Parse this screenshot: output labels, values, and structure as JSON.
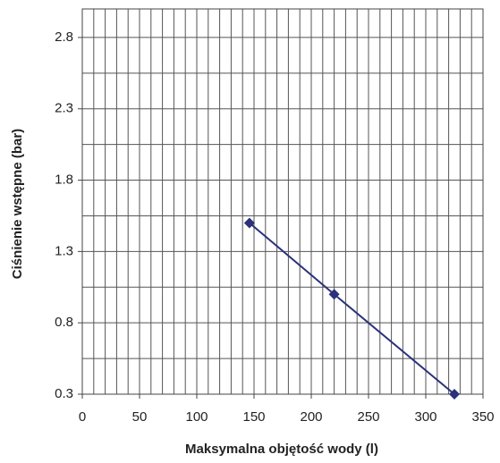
{
  "chart_data": {
    "type": "line",
    "x_label": "Maksymalna objętość wody (l)",
    "y_label": "Ciśnienie wstępne (bar)",
    "x": [
      146,
      220,
      325
    ],
    "series": [
      {
        "color": "#2b327a",
        "values": [
          1.5,
          1.0,
          0.3
        ]
      }
    ],
    "xlim": [
      0,
      350
    ],
    "ylim": [
      0.3,
      3.0
    ],
    "xticks": [
      0,
      50,
      100,
      150,
      200,
      250,
      300,
      350
    ],
    "yticks": [
      0.3,
      0.8,
      1.3,
      1.8,
      2.3,
      2.8
    ],
    "x_grid": [
      0,
      10,
      20,
      30,
      40,
      50,
      60,
      70,
      80,
      90,
      100,
      110,
      120,
      130,
      140,
      150,
      160,
      170,
      180,
      190,
      200,
      210,
      220,
      230,
      240,
      250,
      260,
      270,
      280,
      290,
      300,
      310,
      320,
      330,
      340,
      350
    ],
    "y_grid": [
      0.3,
      0.55,
      0.8,
      1.05,
      1.3,
      1.55,
      1.8,
      2.05,
      2.3,
      2.55,
      2.8
    ],
    "grid": true
  }
}
